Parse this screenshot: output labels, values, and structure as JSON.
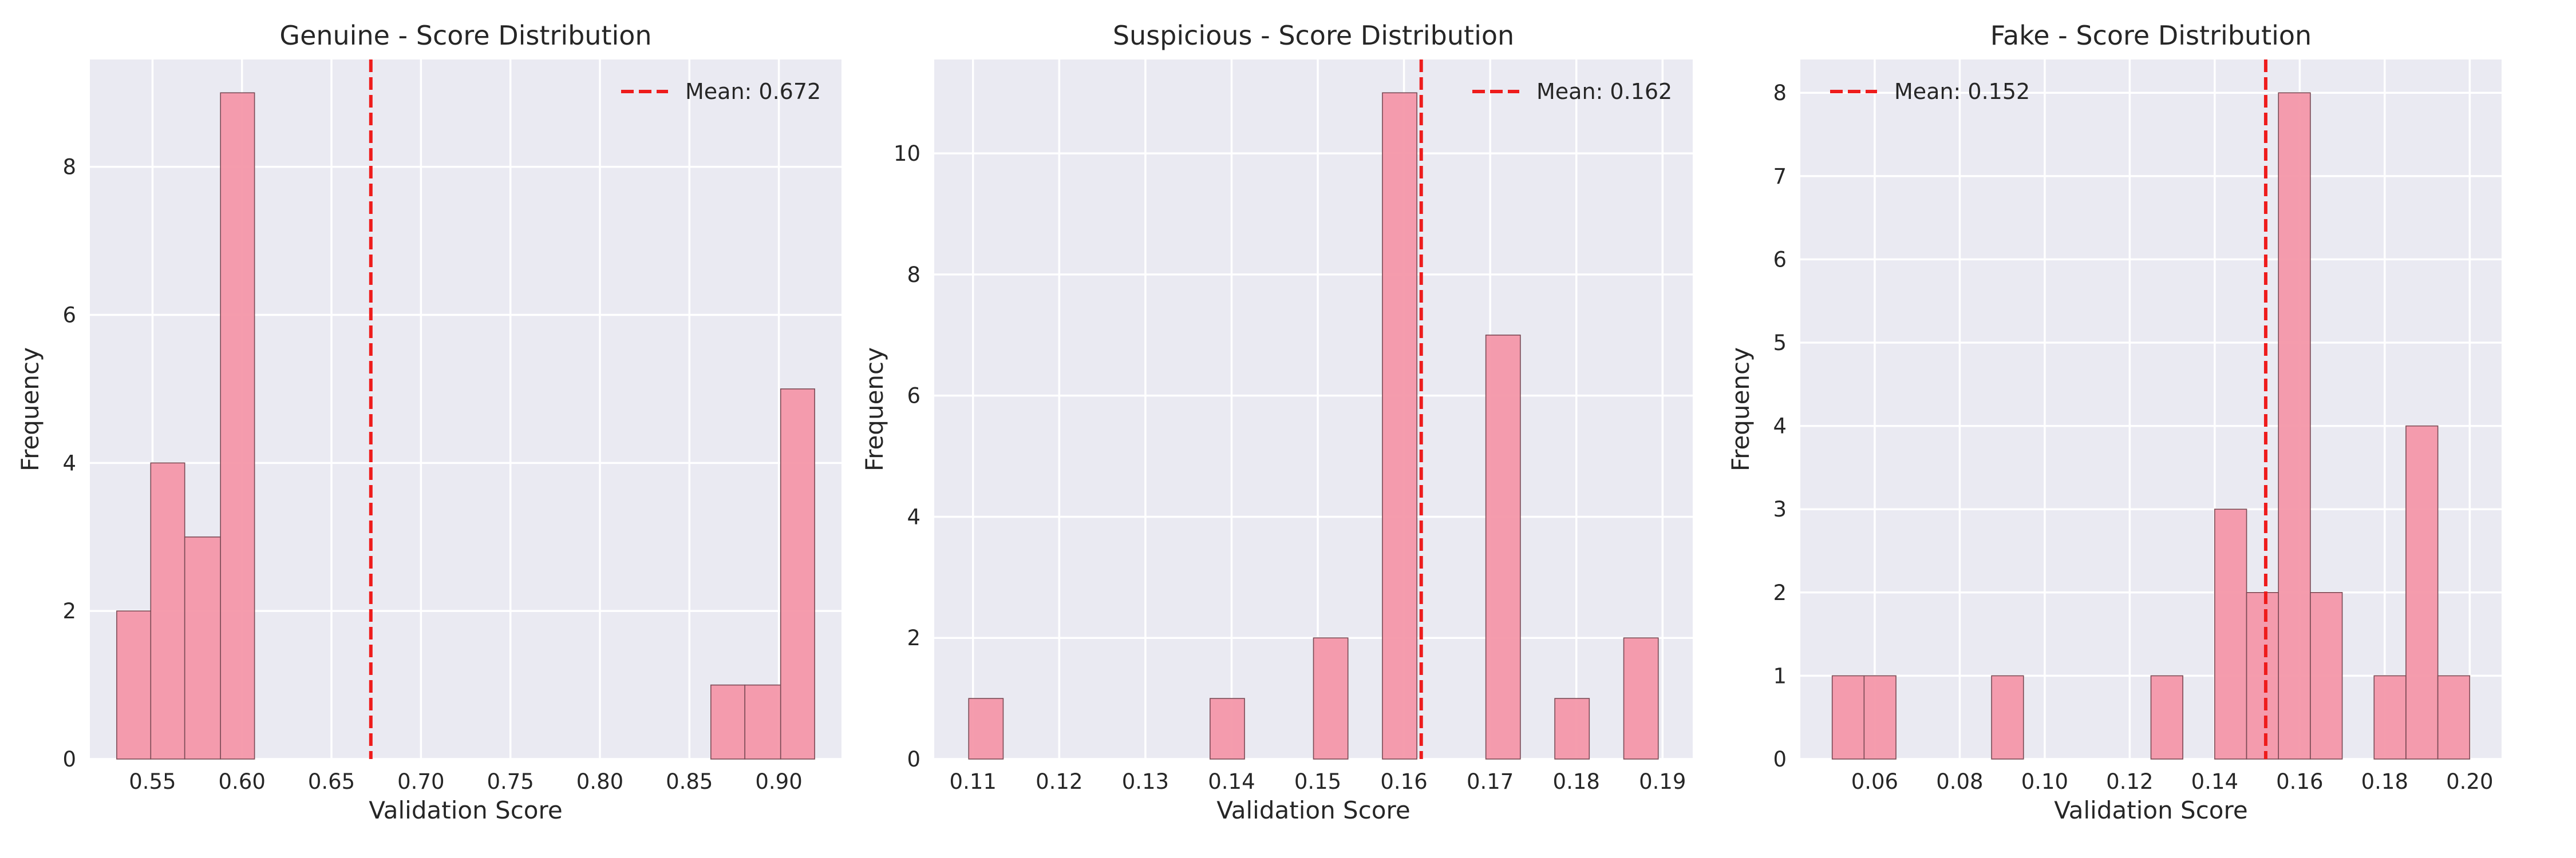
{
  "chart_data": [
    {
      "type": "histogram",
      "title": "Genuine - Score Distribution",
      "xlabel": "Validation Score",
      "ylabel": "Frequency",
      "xlim": [
        0.515,
        0.935
      ],
      "ylim": [
        0,
        9.45
      ],
      "xticks": [
        0.55,
        0.6,
        0.65,
        0.7,
        0.75,
        0.8,
        0.85,
        0.9
      ],
      "xtick_labels": [
        "0.55",
        "0.60",
        "0.65",
        "0.70",
        "0.75",
        "0.80",
        "0.85",
        "0.90"
      ],
      "yticks": [
        0,
        2,
        4,
        6,
        8
      ],
      "ytick_labels": [
        "0",
        "2",
        "4",
        "6",
        "8"
      ],
      "bins": [
        {
          "x0": 0.53,
          "x1": 0.549,
          "count": 2
        },
        {
          "x0": 0.549,
          "x1": 0.568,
          "count": 4
        },
        {
          "x0": 0.568,
          "x1": 0.588,
          "count": 3
        },
        {
          "x0": 0.588,
          "x1": 0.607,
          "count": 9
        },
        {
          "x0": 0.862,
          "x1": 0.881,
          "count": 1
        },
        {
          "x0": 0.881,
          "x1": 0.901,
          "count": 1
        },
        {
          "x0": 0.901,
          "x1": 0.92,
          "count": 5
        }
      ],
      "mean": 0.672,
      "legend_label": "Mean: 0.672",
      "legend_position": "upper right",
      "bar_color": "#f497a9",
      "mean_color": "#ee1c1c",
      "grid": true
    },
    {
      "type": "histogram",
      "title": "Suspicious - Score Distribution",
      "xlabel": "Validation Score",
      "ylabel": "Frequency",
      "xlim": [
        0.1055,
        0.1935
      ],
      "ylim": [
        0,
        11.55
      ],
      "xticks": [
        0.11,
        0.12,
        0.13,
        0.14,
        0.15,
        0.16,
        0.17,
        0.18,
        0.19
      ],
      "xtick_labels": [
        "0.11",
        "0.12",
        "0.13",
        "0.14",
        "0.15",
        "0.16",
        "0.17",
        "0.18",
        "0.19"
      ],
      "yticks": [
        0,
        2,
        4,
        6,
        8,
        10
      ],
      "ytick_labels": [
        "0",
        "2",
        "4",
        "6",
        "8",
        "10"
      ],
      "bins": [
        {
          "x0": 0.1095,
          "x1": 0.1135,
          "count": 1
        },
        {
          "x0": 0.1375,
          "x1": 0.1415,
          "count": 1
        },
        {
          "x0": 0.1495,
          "x1": 0.1535,
          "count": 2
        },
        {
          "x0": 0.1575,
          "x1": 0.1615,
          "count": 11
        },
        {
          "x0": 0.1695,
          "x1": 0.1735,
          "count": 7
        },
        {
          "x0": 0.1775,
          "x1": 0.1815,
          "count": 1
        },
        {
          "x0": 0.1855,
          "x1": 0.1895,
          "count": 2
        }
      ],
      "mean": 0.162,
      "legend_label": "Mean: 0.162",
      "legend_position": "upper right",
      "bar_color": "#f497a9",
      "mean_color": "#ee1c1c",
      "grid": true
    },
    {
      "type": "histogram",
      "title": "Fake - Score Distribution",
      "xlabel": "Validation Score",
      "ylabel": "Frequency",
      "xlim": [
        0.0425,
        0.2075
      ],
      "ylim": [
        0,
        8.4
      ],
      "xticks": [
        0.06,
        0.08,
        0.1,
        0.12,
        0.14,
        0.16,
        0.18,
        0.2
      ],
      "xtick_labels": [
        "0.06",
        "0.08",
        "0.10",
        "0.12",
        "0.14",
        "0.16",
        "0.18",
        "0.20"
      ],
      "yticks": [
        0,
        1,
        2,
        3,
        4,
        5,
        6,
        7,
        8
      ],
      "ytick_labels": [
        "0",
        "1",
        "2",
        "3",
        "4",
        "5",
        "6",
        "7",
        "8"
      ],
      "bins": [
        {
          "x0": 0.05,
          "x1": 0.0575,
          "count": 1
        },
        {
          "x0": 0.0575,
          "x1": 0.065,
          "count": 1
        },
        {
          "x0": 0.0875,
          "x1": 0.095,
          "count": 1
        },
        {
          "x0": 0.125,
          "x1": 0.1325,
          "count": 1
        },
        {
          "x0": 0.14,
          "x1": 0.1475,
          "count": 3
        },
        {
          "x0": 0.1475,
          "x1": 0.155,
          "count": 2
        },
        {
          "x0": 0.155,
          "x1": 0.1625,
          "count": 8
        },
        {
          "x0": 0.1625,
          "x1": 0.17,
          "count": 2
        },
        {
          "x0": 0.1775,
          "x1": 0.185,
          "count": 1
        },
        {
          "x0": 0.185,
          "x1": 0.1925,
          "count": 4
        },
        {
          "x0": 0.1925,
          "x1": 0.2,
          "count": 1
        }
      ],
      "mean": 0.152,
      "legend_label": "Mean: 0.152",
      "legend_position": "upper left",
      "bar_color": "#f497a9",
      "mean_color": "#ee1c1c",
      "grid": true
    }
  ]
}
